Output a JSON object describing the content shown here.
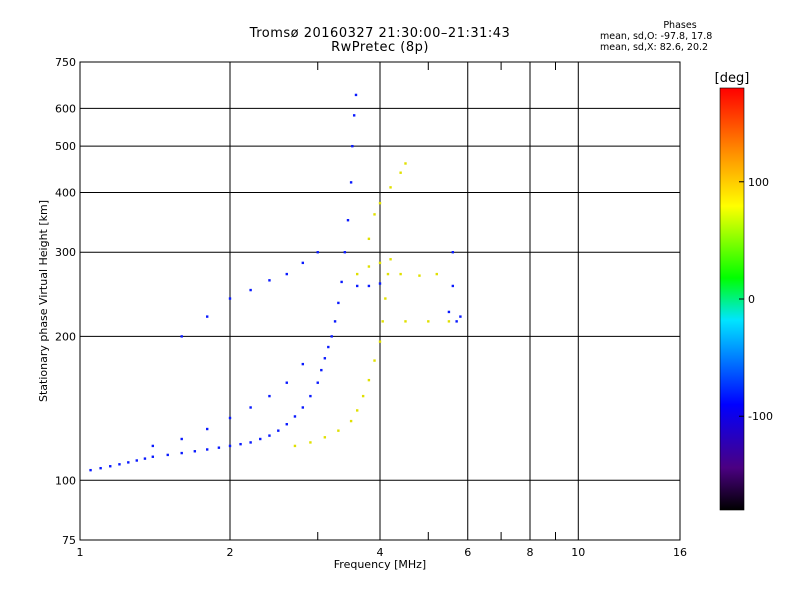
{
  "title": "Tromsø 20160327 21:30:00–21:31:43",
  "subtitle": "RwPretec (8p)",
  "stats": {
    "header": "Phases",
    "line_o": "mean, sd,O: -97.8, 17.8",
    "line_x": "mean, sd,X:  82.6, 20.2"
  },
  "colorbar": {
    "label": "[deg]",
    "min": -180,
    "max": 180,
    "ticks": [
      {
        "v": 100,
        "label": "100"
      },
      {
        "v": 0,
        "label": "0"
      },
      {
        "v": -100,
        "label": "-100"
      }
    ]
  },
  "chart_data": {
    "type": "scatter",
    "xlabel": "Frequency [MHz]",
    "ylabel": "Stationary phase Virtual Height [km]",
    "x_scale": "log",
    "y_scale": "log",
    "xlim": [
      1,
      16
    ],
    "ylim": [
      75,
      750
    ],
    "x_ticks": [
      {
        "v": 1,
        "label": "1"
      },
      {
        "v": 2,
        "label": "2"
      },
      {
        "v": 4,
        "label": "4"
      },
      {
        "v": 6,
        "label": "6"
      },
      {
        "v": 8,
        "label": "8"
      },
      {
        "v": 10,
        "label": "10"
      },
      {
        "v": 16,
        "label": "16"
      }
    ],
    "x_minor": [
      3,
      5,
      7,
      9
    ],
    "y_ticks": [
      {
        "v": 75,
        "label": "75"
      },
      {
        "v": 100,
        "label": "100"
      },
      {
        "v": 200,
        "label": "200"
      },
      {
        "v": 300,
        "label": "300"
      },
      {
        "v": 400,
        "label": "400"
      },
      {
        "v": 500,
        "label": "500"
      },
      {
        "v": 600,
        "label": "600"
      },
      {
        "v": 750,
        "label": "750"
      }
    ],
    "grid": true,
    "series": [
      {
        "name": "O",
        "color_phase_deg": -100,
        "points": [
          [
            1.05,
            105
          ],
          [
            1.1,
            106
          ],
          [
            1.15,
            107
          ],
          [
            1.2,
            108
          ],
          [
            1.25,
            109
          ],
          [
            1.3,
            110
          ],
          [
            1.35,
            111
          ],
          [
            1.4,
            112
          ],
          [
            1.5,
            113
          ],
          [
            1.6,
            114
          ],
          [
            1.7,
            115
          ],
          [
            1.8,
            116
          ],
          [
            1.9,
            117
          ],
          [
            2.0,
            118
          ],
          [
            2.1,
            119
          ],
          [
            2.2,
            120
          ],
          [
            2.3,
            122
          ],
          [
            2.4,
            124
          ],
          [
            2.5,
            127
          ],
          [
            2.6,
            131
          ],
          [
            2.7,
            136
          ],
          [
            2.8,
            142
          ],
          [
            2.9,
            150
          ],
          [
            3.0,
            160
          ],
          [
            3.05,
            170
          ],
          [
            3.1,
            180
          ],
          [
            3.15,
            190
          ],
          [
            3.2,
            200
          ],
          [
            3.25,
            215
          ],
          [
            3.3,
            235
          ],
          [
            3.35,
            260
          ],
          [
            3.4,
            300
          ],
          [
            3.45,
            350
          ],
          [
            3.5,
            420
          ],
          [
            3.52,
            500
          ],
          [
            3.55,
            580
          ],
          [
            3.58,
            640
          ],
          [
            1.4,
            118
          ],
          [
            1.6,
            122
          ],
          [
            1.8,
            128
          ],
          [
            2.0,
            135
          ],
          [
            2.2,
            142
          ],
          [
            2.4,
            150
          ],
          [
            2.6,
            160
          ],
          [
            2.8,
            175
          ],
          [
            1.6,
            200
          ],
          [
            1.8,
            220
          ],
          [
            2.0,
            240
          ],
          [
            2.2,
            250
          ],
          [
            2.4,
            262
          ],
          [
            2.6,
            270
          ],
          [
            2.8,
            285
          ],
          [
            3.0,
            300
          ],
          [
            3.6,
            255
          ],
          [
            3.8,
            255
          ],
          [
            4.0,
            258
          ],
          [
            5.5,
            225
          ],
          [
            5.6,
            255
          ],
          [
            5.6,
            300
          ],
          [
            5.7,
            215
          ],
          [
            5.8,
            220
          ]
        ]
      },
      {
        "name": "X",
        "color_phase_deg": 80,
        "points": [
          [
            2.7,
            118
          ],
          [
            2.9,
            120
          ],
          [
            3.1,
            123
          ],
          [
            3.3,
            127
          ],
          [
            3.5,
            133
          ],
          [
            3.6,
            140
          ],
          [
            3.7,
            150
          ],
          [
            3.8,
            162
          ],
          [
            3.9,
            178
          ],
          [
            4.0,
            195
          ],
          [
            4.05,
            215
          ],
          [
            4.1,
            240
          ],
          [
            4.15,
            270
          ],
          [
            4.2,
            290
          ],
          [
            3.6,
            270
          ],
          [
            3.8,
            280
          ],
          [
            4.0,
            285
          ],
          [
            4.4,
            270
          ],
          [
            4.8,
            268
          ],
          [
            5.2,
            270
          ],
          [
            3.8,
            320
          ],
          [
            3.9,
            360
          ],
          [
            4.0,
            380
          ],
          [
            4.2,
            410
          ],
          [
            4.4,
            440
          ],
          [
            4.5,
            460
          ],
          [
            4.5,
            215
          ],
          [
            5.0,
            215
          ],
          [
            5.5,
            215
          ]
        ]
      }
    ]
  }
}
